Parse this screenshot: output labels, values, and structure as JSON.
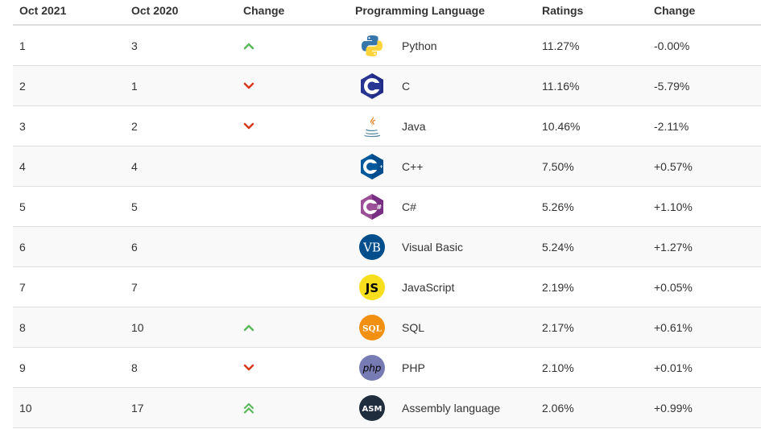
{
  "headers": {
    "oct2021": "Oct 2021",
    "oct2020": "Oct 2020",
    "change": "Change",
    "language": "Programming Language",
    "ratings": "Ratings",
    "change2": "Change"
  },
  "rows": [
    {
      "rank2021": "1",
      "rank2020": "3",
      "trend": "up",
      "trend_icon": "chevron-up-icon",
      "language": "Python",
      "lang_icon": "python-logo-icon",
      "rating": "11.27%",
      "change": "-0.00%"
    },
    {
      "rank2021": "2",
      "rank2020": "1",
      "trend": "down",
      "trend_icon": "chevron-down-icon",
      "language": "C",
      "lang_icon": "c-logo-icon",
      "rating": "11.16%",
      "change": "-5.79%"
    },
    {
      "rank2021": "3",
      "rank2020": "2",
      "trend": "down",
      "trend_icon": "chevron-down-icon",
      "language": "Java",
      "lang_icon": "java-logo-icon",
      "rating": "10.46%",
      "change": "-2.11%"
    },
    {
      "rank2021": "4",
      "rank2020": "4",
      "trend": "none",
      "trend_icon": "",
      "language": "C++",
      "lang_icon": "cpp-logo-icon",
      "rating": "7.50%",
      "change": "+0.57%"
    },
    {
      "rank2021": "5",
      "rank2020": "5",
      "trend": "none",
      "trend_icon": "",
      "language": "C#",
      "lang_icon": "csharp-logo-icon",
      "rating": "5.26%",
      "change": "+1.10%"
    },
    {
      "rank2021": "6",
      "rank2020": "6",
      "trend": "none",
      "trend_icon": "",
      "language": "Visual Basic",
      "lang_icon": "visual-basic-logo-icon",
      "rating": "5.24%",
      "change": "+1.27%"
    },
    {
      "rank2021": "7",
      "rank2020": "7",
      "trend": "none",
      "trend_icon": "",
      "language": "JavaScript",
      "lang_icon": "javascript-logo-icon",
      "rating": "2.19%",
      "change": "+0.05%"
    },
    {
      "rank2021": "8",
      "rank2020": "10",
      "trend": "up",
      "trend_icon": "chevron-up-icon",
      "language": "SQL",
      "lang_icon": "sql-logo-icon",
      "rating": "2.17%",
      "change": "+0.61%"
    },
    {
      "rank2021": "9",
      "rank2020": "8",
      "trend": "down",
      "trend_icon": "chevron-down-icon",
      "language": "PHP",
      "lang_icon": "php-logo-icon",
      "rating": "2.10%",
      "change": "+0.01%"
    },
    {
      "rank2021": "10",
      "rank2020": "17",
      "trend": "upup",
      "trend_icon": "double-chevron-up-icon",
      "language": "Assembly language",
      "lang_icon": "assembly-logo-icon",
      "rating": "2.06%",
      "change": "+0.99%"
    }
  ],
  "icon_text": {
    "js": "JS",
    "sql": "SQL",
    "php": "php",
    "vb": "VB",
    "asm": "ASM"
  },
  "colors": {
    "up": "#5cb85c",
    "down": "#d9391b",
    "header_border": "#dddddd",
    "alt_row": "#f9f9f9"
  }
}
